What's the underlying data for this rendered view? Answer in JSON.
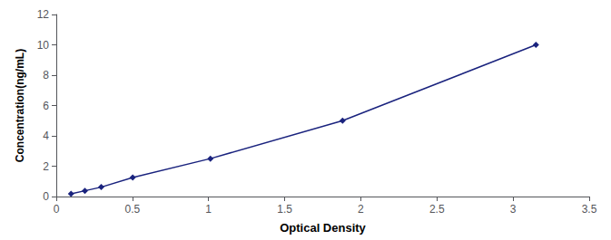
{
  "chart_data": {
    "type": "line",
    "x": [
      0.097,
      0.188,
      0.295,
      0.502,
      1.012,
      1.88,
      3.15
    ],
    "values": [
      0.18,
      0.38,
      0.62,
      1.25,
      2.5,
      5.0,
      10.0
    ],
    "color": "#1a237e",
    "marker": "diamond",
    "xlabel": "Optical Density",
    "ylabel": "Concentration(ng/mL)",
    "xlim": [
      0,
      3.5
    ],
    "ylim": [
      0,
      12
    ],
    "xticks": [
      0,
      0.5,
      1,
      1.5,
      2,
      2.5,
      3,
      3.5
    ],
    "yticks": [
      0,
      2,
      4,
      6,
      8,
      10,
      12
    ],
    "grid": false
  }
}
